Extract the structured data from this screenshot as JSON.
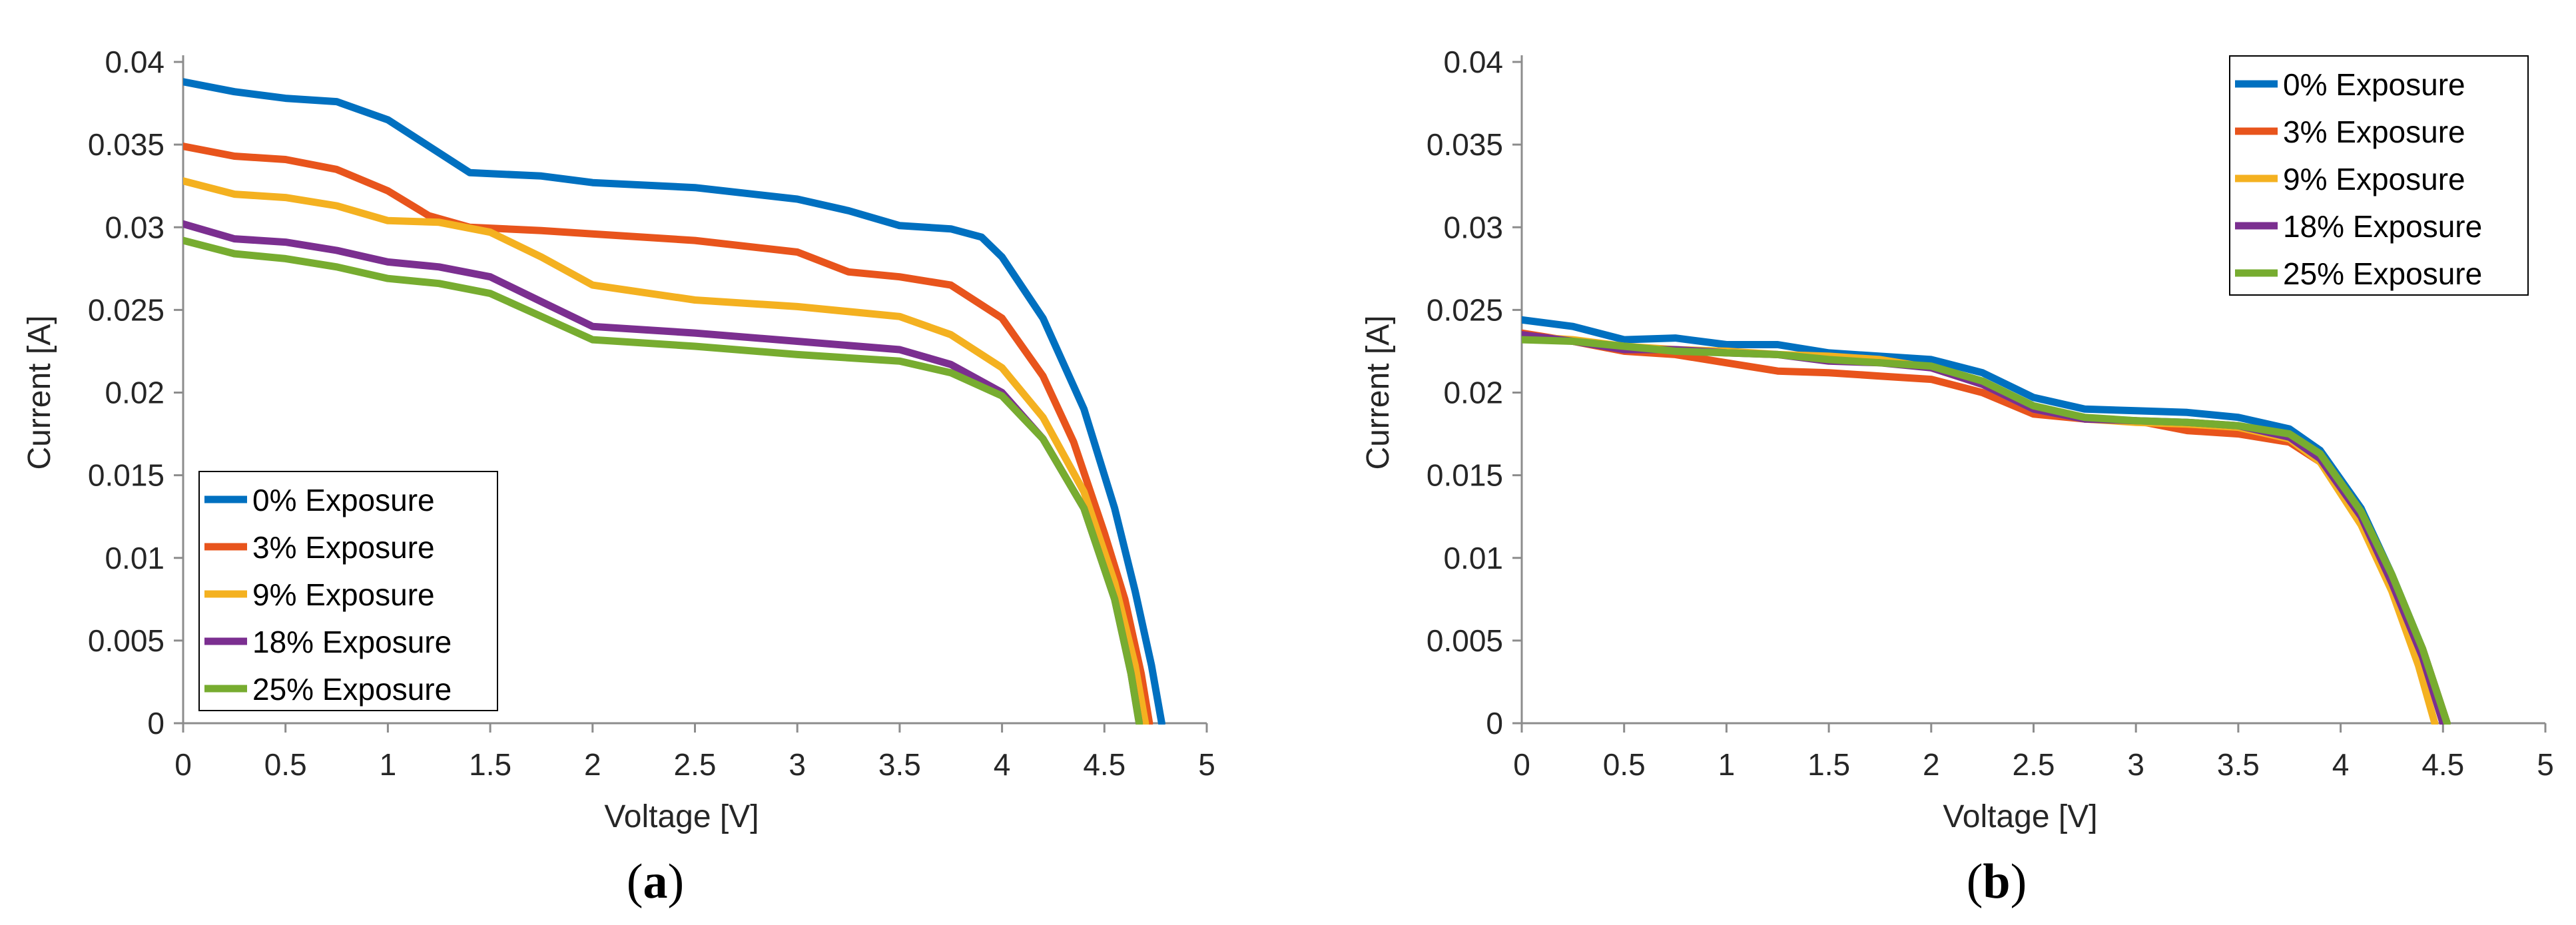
{
  "chart_data": [
    {
      "type": "line",
      "panel_label": "a",
      "xlabel": "Voltage [V]",
      "ylabel": "Current [A]",
      "xlim": [
        0,
        5
      ],
      "ylim": [
        0,
        0.04
      ],
      "xticks": [
        "0",
        "0.5",
        "1",
        "1.5",
        "2",
        "2.5",
        "3",
        "3.5",
        "4",
        "4.5",
        "5"
      ],
      "yticks": [
        "0",
        "0.005",
        "0.01",
        "0.015",
        "0.02",
        "0.025",
        "0.03",
        "0.035",
        "0.04"
      ],
      "grid": false,
      "legend_position": "bottom-left",
      "series": [
        {
          "name": "0% Exposure",
          "color": "#0070C0",
          "x": [
            0,
            0.25,
            0.5,
            0.75,
            1,
            1.25,
            1.4,
            1.75,
            2,
            2.5,
            3,
            3.25,
            3.5,
            3.75,
            3.9,
            4,
            4.2,
            4.4,
            4.55,
            4.65,
            4.73,
            4.78
          ],
          "y": [
            0.0388,
            0.0382,
            0.0378,
            0.0376,
            0.0365,
            0.0345,
            0.0333,
            0.0331,
            0.0327,
            0.0324,
            0.0317,
            0.031,
            0.0301,
            0.0299,
            0.0294,
            0.0282,
            0.0245,
            0.019,
            0.013,
            0.008,
            0.0035,
            0
          ]
        },
        {
          "name": "3% Exposure",
          "color": "#E8541C",
          "x": [
            0,
            0.25,
            0.5,
            0.75,
            1,
            1.2,
            1.4,
            1.75,
            2,
            2.5,
            3,
            3.25,
            3.5,
            3.75,
            4,
            4.2,
            4.35,
            4.5,
            4.6,
            4.68,
            4.72
          ],
          "y": [
            0.0349,
            0.0343,
            0.0341,
            0.0335,
            0.0322,
            0.0307,
            0.03,
            0.0298,
            0.0296,
            0.0292,
            0.0285,
            0.0273,
            0.027,
            0.0265,
            0.0245,
            0.021,
            0.017,
            0.0115,
            0.0075,
            0.003,
            0
          ]
        },
        {
          "name": "9% Exposure",
          "color": "#F4B120",
          "x": [
            0,
            0.25,
            0.5,
            0.75,
            1,
            1.25,
            1.5,
            1.75,
            2,
            2.5,
            3,
            3.5,
            3.75,
            4,
            4.2,
            4.4,
            4.55,
            4.65,
            4.7
          ],
          "y": [
            0.0328,
            0.032,
            0.0318,
            0.0313,
            0.0304,
            0.0303,
            0.0297,
            0.0282,
            0.0265,
            0.0256,
            0.0252,
            0.0246,
            0.0235,
            0.0215,
            0.0185,
            0.014,
            0.0085,
            0.0035,
            0
          ]
        },
        {
          "name": "18% Exposure",
          "color": "#7B2F90",
          "x": [
            0,
            0.25,
            0.5,
            0.75,
            1,
            1.25,
            1.5,
            1.75,
            2,
            2.5,
            3,
            3.5,
            3.75,
            4,
            4.2,
            4.4,
            4.55,
            4.63,
            4.67
          ],
          "y": [
            0.0302,
            0.0293,
            0.0291,
            0.0286,
            0.0279,
            0.0276,
            0.027,
            0.0255,
            0.024,
            0.0236,
            0.0231,
            0.0226,
            0.0217,
            0.02,
            0.0172,
            0.013,
            0.0075,
            0.003,
            0
          ]
        },
        {
          "name": "25% Exposure",
          "color": "#77AC30",
          "x": [
            0,
            0.25,
            0.5,
            0.75,
            1,
            1.25,
            1.5,
            1.75,
            2,
            2.5,
            3,
            3.5,
            3.75,
            4,
            4.2,
            4.4,
            4.55,
            4.63,
            4.67
          ],
          "y": [
            0.0292,
            0.0284,
            0.0281,
            0.0276,
            0.0269,
            0.0266,
            0.026,
            0.0246,
            0.0232,
            0.0228,
            0.0223,
            0.0219,
            0.0212,
            0.0198,
            0.0172,
            0.013,
            0.0075,
            0.003,
            0
          ]
        }
      ]
    },
    {
      "type": "line",
      "panel_label": "b",
      "xlabel": "Voltage [V]",
      "ylabel": "Current [A]",
      "xlim": [
        0,
        5
      ],
      "ylim": [
        0,
        0.04
      ],
      "xticks": [
        "0",
        "0.5",
        "1",
        "1.5",
        "2",
        "2.5",
        "3",
        "3.5",
        "4",
        "4.5",
        "5"
      ],
      "yticks": [
        "0",
        "0.005",
        "0.01",
        "0.015",
        "0.02",
        "0.025",
        "0.03",
        "0.035",
        "0.04"
      ],
      "grid": false,
      "legend_position": "top-right",
      "series": [
        {
          "name": "0% Exposure",
          "color": "#0070C0",
          "x": [
            0,
            0.25,
            0.5,
            0.75,
            1,
            1.25,
            1.5,
            2,
            2.25,
            2.5,
            2.75,
            3,
            3.25,
            3.5,
            3.75,
            3.9,
            4.1,
            4.25,
            4.4,
            4.48,
            4.52
          ],
          "y": [
            0.0244,
            0.024,
            0.0232,
            0.0233,
            0.0229,
            0.0229,
            0.0224,
            0.022,
            0.0212,
            0.0197,
            0.019,
            0.0189,
            0.0188,
            0.0185,
            0.0178,
            0.0165,
            0.013,
            0.009,
            0.0045,
            0.0015,
            0
          ]
        },
        {
          "name": "3% Exposure",
          "color": "#E8541C",
          "x": [
            0,
            0.25,
            0.5,
            0.75,
            1,
            1.25,
            1.5,
            1.75,
            2,
            2.25,
            2.5,
            2.75,
            3,
            3.25,
            3.5,
            3.75,
            3.9,
            4.1,
            4.25,
            4.4,
            4.48,
            4.52
          ],
          "y": [
            0.0236,
            0.0231,
            0.0225,
            0.0223,
            0.0218,
            0.0213,
            0.0212,
            0.021,
            0.0208,
            0.02,
            0.0187,
            0.0184,
            0.0183,
            0.0177,
            0.0175,
            0.017,
            0.0158,
            0.0125,
            0.0088,
            0.0045,
            0.0015,
            0
          ]
        },
        {
          "name": "9% Exposure",
          "color": "#F4B120",
          "x": [
            0,
            0.25,
            0.5,
            0.75,
            1,
            1.25,
            1.5,
            1.75,
            2,
            2.25,
            2.5,
            2.75,
            3,
            3.25,
            3.5,
            3.75,
            3.9,
            4.1,
            4.25,
            4.38,
            4.46
          ],
          "y": [
            0.0234,
            0.0232,
            0.0228,
            0.0226,
            0.0225,
            0.0223,
            0.0222,
            0.022,
            0.0215,
            0.0205,
            0.019,
            0.0184,
            0.0182,
            0.0181,
            0.0179,
            0.0172,
            0.0158,
            0.012,
            0.008,
            0.0035,
            0
          ]
        },
        {
          "name": "18% Exposure",
          "color": "#7B2F90",
          "x": [
            0,
            0.25,
            0.5,
            0.75,
            1,
            1.25,
            1.5,
            1.75,
            2,
            2.25,
            2.5,
            2.75,
            3,
            3.25,
            3.5,
            3.75,
            3.9,
            4.1,
            4.25,
            4.4,
            4.47,
            4.5
          ],
          "y": [
            0.0235,
            0.0231,
            0.0226,
            0.0226,
            0.0224,
            0.0223,
            0.0219,
            0.0218,
            0.0215,
            0.0205,
            0.019,
            0.0184,
            0.0183,
            0.0182,
            0.018,
            0.0173,
            0.016,
            0.0125,
            0.0085,
            0.004,
            0.0012,
            0
          ]
        },
        {
          "name": "25% Exposure",
          "color": "#77AC30",
          "x": [
            0,
            0.25,
            0.5,
            0.75,
            1,
            1.25,
            1.5,
            1.75,
            2,
            2.25,
            2.5,
            2.75,
            3,
            3.25,
            3.5,
            3.75,
            3.9,
            4.1,
            4.25,
            4.4,
            4.48,
            4.52
          ],
          "y": [
            0.0232,
            0.0231,
            0.0228,
            0.0225,
            0.0224,
            0.0223,
            0.022,
            0.0218,
            0.0216,
            0.0207,
            0.0192,
            0.0185,
            0.0183,
            0.0182,
            0.018,
            0.0175,
            0.0163,
            0.0128,
            0.009,
            0.0045,
            0.0015,
            0
          ]
        }
      ]
    }
  ]
}
